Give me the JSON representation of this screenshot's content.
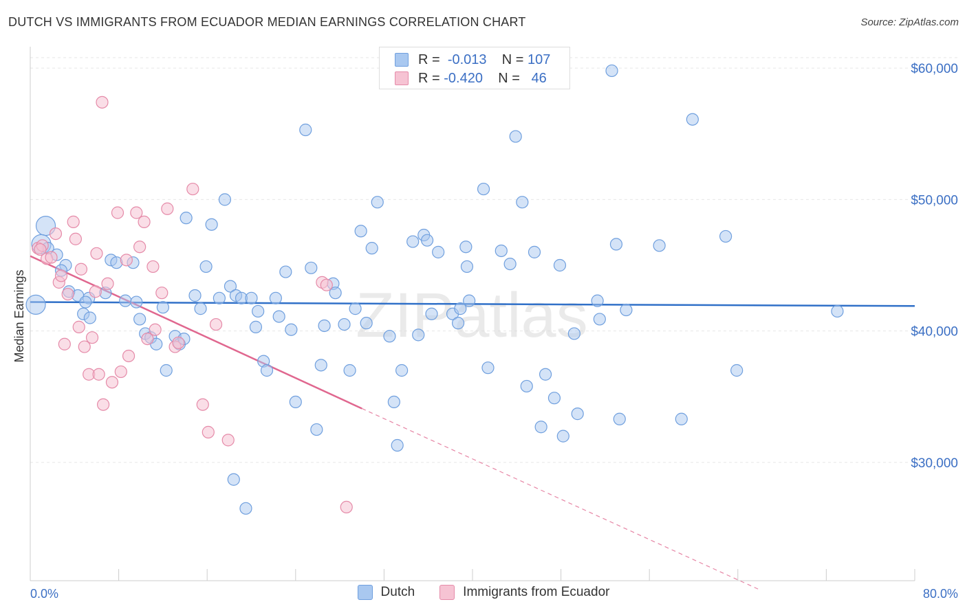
{
  "title": "DUTCH VS IMMIGRANTS FROM ECUADOR MEDIAN EARNINGS CORRELATION CHART",
  "source": "Source: ZipAtlas.com",
  "watermark": "ZIPatlas",
  "legend": {
    "rows": [
      {
        "r_label": "R =",
        "r_value": "-0.013",
        "n_label": "N =",
        "n_value": "107",
        "color": "#a9c8f0",
        "border": "#6f9fde"
      },
      {
        "r_label": "R =",
        "r_value": "-0.420",
        "n_label": "N =",
        "n_value": " 46",
        "color": "#f6c3d3",
        "border": "#e58aa8"
      }
    ]
  },
  "bottom_legend": [
    {
      "label": "Dutch",
      "color": "#a9c8f0",
      "border": "#6f9fde"
    },
    {
      "label": "Immigrants from Ecuador",
      "color": "#f6c3d3",
      "border": "#e58aa8"
    }
  ],
  "chart_data": {
    "type": "scatter",
    "title": "DUTCH VS IMMIGRANTS FROM ECUADOR MEDIAN EARNINGS CORRELATION CHART",
    "xlabel": "",
    "ylabel": "Median Earnings",
    "xlim": [
      0,
      80
    ],
    "ylim": [
      21000,
      61000
    ],
    "x_tick_labels": [
      "0.0%",
      "80.0%"
    ],
    "y_ticks": [
      30000,
      40000,
      50000,
      60000
    ],
    "y_tick_labels": [
      "$30,000",
      "$40,000",
      "$50,000",
      "$60,000"
    ],
    "grid": true,
    "series": [
      {
        "name": "Dutch",
        "color": "#a9c8f0",
        "stroke": "#6f9fde",
        "trend": {
          "x": [
            0,
            80
          ],
          "y": [
            42200,
            41900
          ],
          "color": "#3070c8"
        },
        "points": [
          [
            0.5,
            42000
          ],
          [
            1.4,
            48000
          ],
          [
            1.0,
            46600
          ],
          [
            1.6,
            46300
          ],
          [
            2.4,
            45800
          ],
          [
            3.2,
            45000
          ],
          [
            2.8,
            44600
          ],
          [
            3.5,
            43000
          ],
          [
            4.3,
            42700
          ],
          [
            5.3,
            42500
          ],
          [
            5.0,
            42200
          ],
          [
            4.8,
            41300
          ],
          [
            5.4,
            41000
          ],
          [
            6.8,
            42900
          ],
          [
            7.3,
            45400
          ],
          [
            7.8,
            45200
          ],
          [
            8.6,
            42300
          ],
          [
            9.3,
            45200
          ],
          [
            9.6,
            42200
          ],
          [
            9.9,
            40900
          ],
          [
            10.4,
            39800
          ],
          [
            10.9,
            39500
          ],
          [
            11.4,
            39000
          ],
          [
            12.0,
            41800
          ],
          [
            12.3,
            37000
          ],
          [
            13.1,
            39600
          ],
          [
            13.5,
            39000
          ],
          [
            13.9,
            39400
          ],
          [
            14.1,
            48600
          ],
          [
            14.9,
            42700
          ],
          [
            15.4,
            41700
          ],
          [
            15.9,
            44900
          ],
          [
            16.4,
            48100
          ],
          [
            17.1,
            42500
          ],
          [
            17.6,
            50000
          ],
          [
            18.1,
            43400
          ],
          [
            18.6,
            42700
          ],
          [
            18.4,
            28700
          ],
          [
            19.1,
            42500
          ],
          [
            19.5,
            26500
          ],
          [
            20.0,
            42500
          ],
          [
            20.4,
            40300
          ],
          [
            20.6,
            41500
          ],
          [
            21.1,
            37700
          ],
          [
            21.4,
            37000
          ],
          [
            22.2,
            42500
          ],
          [
            22.5,
            41100
          ],
          [
            23.1,
            44500
          ],
          [
            23.6,
            40100
          ],
          [
            24.0,
            34600
          ],
          [
            24.9,
            55300
          ],
          [
            25.4,
            44800
          ],
          [
            25.9,
            32500
          ],
          [
            26.3,
            37400
          ],
          [
            26.6,
            40400
          ],
          [
            27.4,
            43600
          ],
          [
            27.6,
            42900
          ],
          [
            28.4,
            40500
          ],
          [
            28.9,
            37000
          ],
          [
            29.4,
            41700
          ],
          [
            29.9,
            47600
          ],
          [
            30.4,
            40600
          ],
          [
            30.9,
            46300
          ],
          [
            31.4,
            49800
          ],
          [
            32.5,
            39600
          ],
          [
            32.9,
            34600
          ],
          [
            33.2,
            31300
          ],
          [
            33.6,
            37000
          ],
          [
            34.6,
            46800
          ],
          [
            35.1,
            39700
          ],
          [
            35.6,
            47300
          ],
          [
            35.9,
            46900
          ],
          [
            36.3,
            41300
          ],
          [
            36.9,
            46000
          ],
          [
            38.2,
            41300
          ],
          [
            38.7,
            40600
          ],
          [
            38.9,
            41700
          ],
          [
            39.4,
            46400
          ],
          [
            39.5,
            44900
          ],
          [
            39.7,
            42300
          ],
          [
            41.0,
            50800
          ],
          [
            41.4,
            37200
          ],
          [
            42.6,
            46100
          ],
          [
            43.4,
            45100
          ],
          [
            43.9,
            54800
          ],
          [
            44.5,
            49800
          ],
          [
            44.9,
            35800
          ],
          [
            45.6,
            46000
          ],
          [
            46.2,
            32700
          ],
          [
            46.6,
            36700
          ],
          [
            47.4,
            34900
          ],
          [
            47.9,
            45000
          ],
          [
            48.2,
            32000
          ],
          [
            49.2,
            39800
          ],
          [
            49.5,
            33700
          ],
          [
            51.3,
            42300
          ],
          [
            51.5,
            40900
          ],
          [
            52.6,
            59800
          ],
          [
            53.0,
            46600
          ],
          [
            53.3,
            33300
          ],
          [
            53.9,
            41600
          ],
          [
            56.9,
            46500
          ],
          [
            58.9,
            33300
          ],
          [
            59.9,
            56100
          ],
          [
            62.9,
            47200
          ],
          [
            63.9,
            37000
          ],
          [
            73.0,
            41500
          ]
        ],
        "sizes": {
          "large": [
            [
              0.5,
              42000
            ],
            [
              1.4,
              48000
            ],
            [
              1.0,
              46600
            ]
          ]
        }
      },
      {
        "name": "Immigrants from Ecuador",
        "color": "#f6c3d3",
        "stroke": "#e58aa8",
        "trend": {
          "x": [
            0,
            30
          ],
          "y": [
            45700,
            34100
          ],
          "dashed_to": [
            66,
            20300
          ],
          "color": "#e0678f"
        },
        "points": [
          [
            0.7,
            46300
          ],
          [
            1.1,
            46500
          ],
          [
            1.5,
            45500
          ],
          [
            1.9,
            45600
          ],
          [
            2.3,
            47400
          ],
          [
            2.6,
            43700
          ],
          [
            2.8,
            44200
          ],
          [
            3.1,
            39000
          ],
          [
            3.4,
            42800
          ],
          [
            3.9,
            48300
          ],
          [
            4.1,
            47000
          ],
          [
            4.4,
            40300
          ],
          [
            4.6,
            44700
          ],
          [
            4.9,
            38800
          ],
          [
            5.3,
            36700
          ],
          [
            5.6,
            39500
          ],
          [
            5.9,
            43000
          ],
          [
            6.0,
            45900
          ],
          [
            6.2,
            36700
          ],
          [
            6.5,
            57400
          ],
          [
            6.6,
            34400
          ],
          [
            7.0,
            43600
          ],
          [
            7.4,
            36100
          ],
          [
            7.9,
            49000
          ],
          [
            8.2,
            36900
          ],
          [
            8.7,
            45400
          ],
          [
            8.9,
            38100
          ],
          [
            9.6,
            49000
          ],
          [
            9.9,
            46400
          ],
          [
            10.3,
            48300
          ],
          [
            10.6,
            39400
          ],
          [
            11.1,
            44900
          ],
          [
            11.3,
            40100
          ],
          [
            11.9,
            42900
          ],
          [
            12.4,
            49300
          ],
          [
            13.1,
            38800
          ],
          [
            13.4,
            39100
          ],
          [
            14.7,
            50800
          ],
          [
            15.6,
            34400
          ],
          [
            16.1,
            32300
          ],
          [
            16.8,
            40500
          ],
          [
            17.9,
            31700
          ],
          [
            26.4,
            43700
          ],
          [
            26.8,
            43500
          ],
          [
            28.6,
            26600
          ],
          [
            0.9,
            46200
          ]
        ]
      }
    ]
  }
}
